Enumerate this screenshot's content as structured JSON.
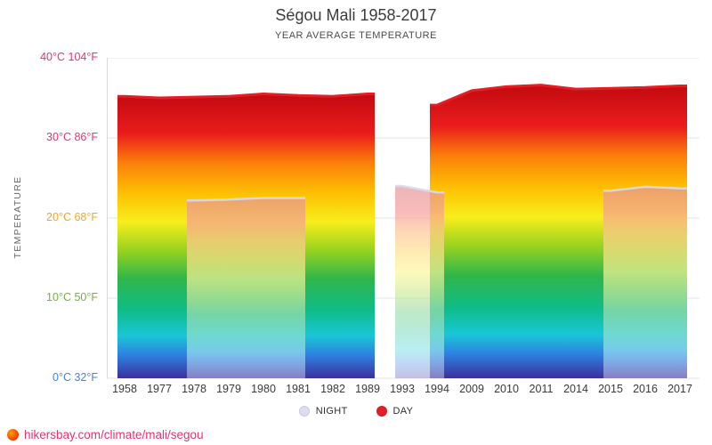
{
  "chart_data": {
    "type": "area",
    "title": "Ségou Mali 1958-2017",
    "subtitle": "YEAR AVERAGE TEMPERATURE",
    "ylabel": "TEMPERATURE",
    "xlabel": "",
    "ylim": [
      0,
      40
    ],
    "grid": true,
    "legend_position": "bottom",
    "yticks": [
      {
        "value": 40,
        "label": "40°C 104°F",
        "color": "#e8336d"
      },
      {
        "value": 30,
        "label": "30°C 86°F",
        "color": "#e8336d"
      },
      {
        "value": 20,
        "label": "20°C 68°F",
        "color": "#f5a623"
      },
      {
        "value": 10,
        "label": "10°C 50°F",
        "color": "#76b041"
      },
      {
        "value": 0,
        "label": "0°C 32°F",
        "color": "#4a7fd4"
      }
    ],
    "categories": [
      "1958",
      "1977",
      "1978",
      "1979",
      "1980",
      "1981",
      "1982",
      "1989",
      "1993",
      "1994",
      "2009",
      "2010",
      "2011",
      "2014",
      "2015",
      "2016",
      "2017"
    ],
    "series": [
      {
        "name": "DAY",
        "color": "#e31e24",
        "values": [
          35.2,
          35.0,
          35.1,
          35.2,
          35.5,
          35.3,
          35.2,
          35.5,
          null,
          34.1,
          35.9,
          36.4,
          36.6,
          36.1,
          36.2,
          36.3,
          36.5
        ]
      },
      {
        "name": "NIGHT",
        "color": "#dcdcf2",
        "values": [
          null,
          null,
          22.2,
          22.3,
          22.5,
          22.5,
          null,
          null,
          24.0,
          23.2,
          null,
          null,
          null,
          null,
          23.4,
          23.9,
          23.7
        ]
      }
    ],
    "gradient": [
      {
        "at": 0.0,
        "color": "#c20a10"
      },
      {
        "at": 0.14,
        "color": "#ea1c1c"
      },
      {
        "at": 0.24,
        "color": "#fb7e0a"
      },
      {
        "at": 0.35,
        "color": "#fdc002"
      },
      {
        "at": 0.45,
        "color": "#f8ee1c"
      },
      {
        "at": 0.55,
        "color": "#97d21f"
      },
      {
        "at": 0.65,
        "color": "#2fb64a"
      },
      {
        "at": 0.76,
        "color": "#0fbc87"
      },
      {
        "at": 0.85,
        "color": "#19c6d7"
      },
      {
        "at": 0.92,
        "color": "#2e7fe0"
      },
      {
        "at": 1.0,
        "color": "#3c2f9c"
      }
    ]
  },
  "legend": {
    "items": [
      {
        "label": "NIGHT",
        "color": "#dcdcf2"
      },
      {
        "label": "DAY",
        "color": "#e31e24"
      }
    ]
  },
  "footer": {
    "link": "hikersbay.com/climate/mali/segou",
    "color": "#e8336d"
  }
}
